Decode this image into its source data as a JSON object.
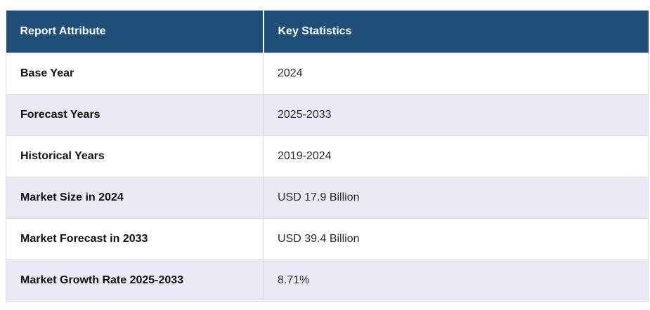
{
  "table": {
    "columns": [
      {
        "label": "Report Attribute"
      },
      {
        "label": "Key Statistics"
      }
    ],
    "rows": [
      {
        "attribute": "Base Year",
        "value": "2024"
      },
      {
        "attribute": "Forecast Years",
        "value": "2025-2033"
      },
      {
        "attribute": "Historical Years",
        "value": "2019-2024"
      },
      {
        "attribute": "Market Size in 2024",
        "value": "USD 17.9 Billion"
      },
      {
        "attribute": "Market Forecast in 2033",
        "value": "USD 39.4 Billion"
      },
      {
        "attribute": "Market Growth Rate 2025-2033",
        "value": "8.71%"
      }
    ],
    "colors": {
      "header_bg": "#1f4e79",
      "header_text": "#ffffff",
      "row_bg": "#ffffff",
      "alt_row_bg": "#e8e9f3",
      "cell_border": "#d9dbe5",
      "attribute_text": "#111111",
      "value_text": "#2b2b2b",
      "page_bg": "#ffffff"
    }
  }
}
